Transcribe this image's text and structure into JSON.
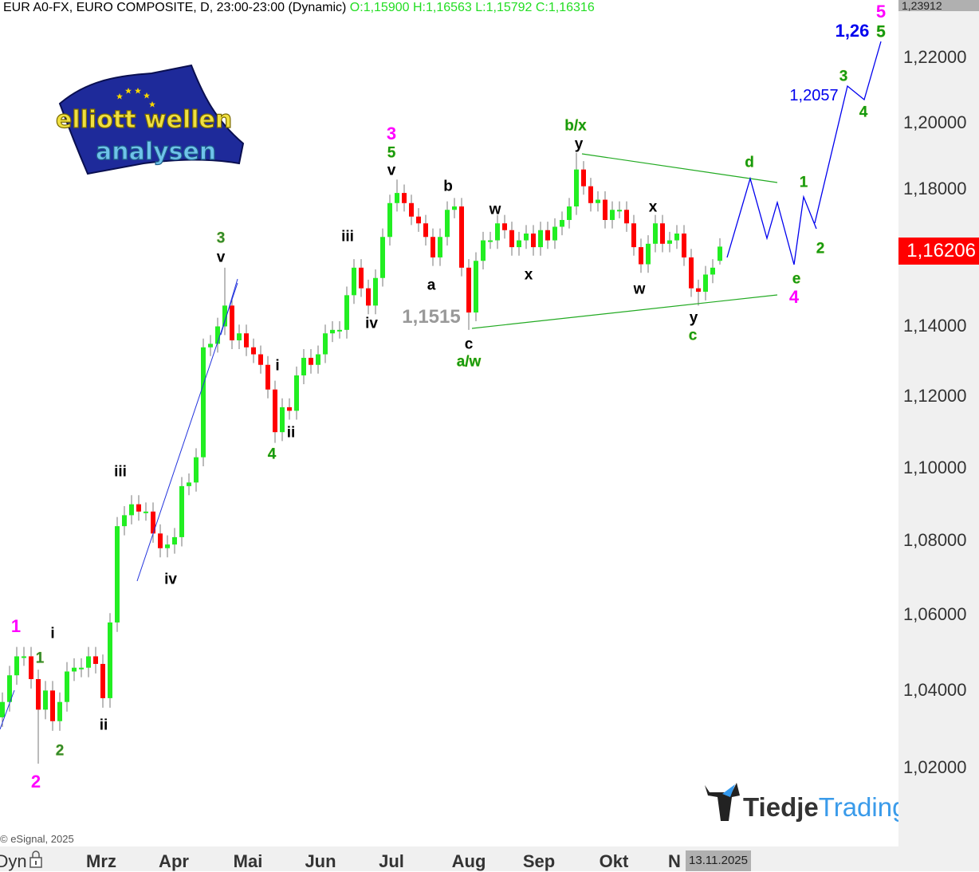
{
  "header": {
    "title": "EUR A0-FX, EURO COMPOSITE, D, 23:00-23:00 (Dynamic)",
    "ohlc": "O:1,15900 H:1,16563 L:1,15792 C:1,16316"
  },
  "copyright": "© eSignal, 2025",
  "bottom_bar": {
    "mode": "Dyn",
    "lock_icon": "lock-icon",
    "current_date": "13.11.2025"
  },
  "price_axis": {
    "top_value": "1,23912",
    "current_price": "1,16206",
    "ticks": [
      "1,22000",
      "1,20000",
      "1,18000",
      "1,14000",
      "1,12000",
      "1,10000",
      "1,08000",
      "1,06000",
      "1,04000",
      "1,02000"
    ]
  },
  "logos": {
    "left": "elliott wellen analysen",
    "right_a": "Tiedje",
    "right_b": "Trading"
  },
  "colors": {
    "up": "#22ee22",
    "down": "#ff0000",
    "triangle": "#22aa22",
    "projection": "#0000ee",
    "current_price": "#ff0000"
  },
  "chart_data": {
    "type": "candlestick",
    "scale": "log",
    "ylim": [
      1.0,
      1.24
    ],
    "x_tick_labels": [
      "Dyn",
      "Mrz",
      "Apr",
      "Mai",
      "Jun",
      "Jul",
      "Aug",
      "Sep",
      "Okt",
      "N"
    ],
    "closes": [
      1.037,
      1.044,
      1.049,
      1.049,
      1.043,
      1.035,
      1.04,
      1.032,
      1.037,
      1.045,
      1.046,
      1.046,
      1.049,
      1.047,
      1.038,
      1.058,
      1.084,
      1.087,
      1.09,
      1.088,
      1.088,
      1.082,
      1.078,
      1.079,
      1.081,
      1.095,
      1.096,
      1.103,
      1.134,
      1.135,
      1.14,
      1.146,
      1.136,
      1.138,
      1.134,
      1.132,
      1.129,
      1.122,
      1.11,
      1.117,
      1.116,
      1.126,
      1.131,
      1.129,
      1.132,
      1.138,
      1.139,
      1.139,
      1.149,
      1.157,
      1.151,
      1.146,
      1.154,
      1.166,
      1.176,
      1.179,
      1.176,
      1.172,
      1.17,
      1.166,
      1.16,
      1.166,
      1.174,
      1.175,
      1.157,
      1.144,
      1.159,
      1.165,
      1.165,
      1.17,
      1.168,
      1.163,
      1.165,
      1.167,
      1.163,
      1.168,
      1.165,
      1.169,
      1.171,
      1.175,
      1.186,
      1.181,
      1.176,
      1.177,
      1.171,
      1.174,
      1.174,
      1.17,
      1.163,
      1.158,
      1.164,
      1.17,
      1.164,
      1.165,
      1.167,
      1.16,
      1.151,
      1.15,
      1.155,
      1.157,
      1.163
    ],
    "extremes": [
      {
        "i": 5,
        "low": 1.021
      },
      {
        "i": 31,
        "high": 1.157
      },
      {
        "i": 38,
        "low": 1.107
      },
      {
        "i": 55,
        "high": 1.183
      },
      {
        "i": 65,
        "low": 1.139
      },
      {
        "i": 80,
        "high": 1.191
      },
      {
        "i": 97,
        "low": 1.146
      }
    ],
    "last_candle": {
      "open": 1.159,
      "high": 1.16563,
      "low": 1.15792,
      "close": 1.16316
    },
    "annotations": {
      "price_label_low": "1,1515",
      "target_3": "1,2057",
      "target_5": "1,26"
    },
    "wave_labels": {
      "p1": "1",
      "g1": "1",
      "i1": "i",
      "g2": "2",
      "p2": "2",
      "ii1": "ii",
      "iii1": "iii",
      "iv1": "iv",
      "g3": "3",
      "v1": "v",
      "i2": "i",
      "ii2": "ii",
      "g4": "4",
      "iii2": "iii",
      "iv2": "iv",
      "p3": "3",
      "g5": "5",
      "v2": "v",
      "b": "b",
      "a": "a",
      "c": "c",
      "aw": "a/w",
      "w1": "w",
      "x1": "x",
      "bx": "b/x",
      "y1": "y",
      "x2": "x",
      "w2": "w",
      "y2": "y",
      "cg": "c",
      "d": "d",
      "f1": "1",
      "f2": "2",
      "e": "e",
      "p4": "4",
      "f3": "3",
      "f4": "4",
      "f5": "5",
      "p5": "5"
    }
  }
}
